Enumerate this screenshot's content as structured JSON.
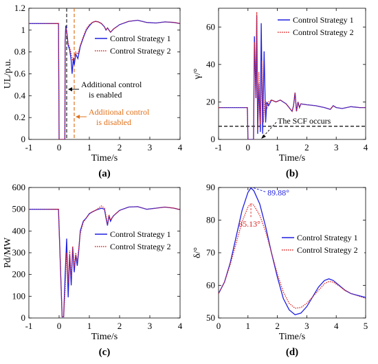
{
  "colors": {
    "strategy1": "#1f1fe0",
    "strategy2": "#e02020",
    "axis": "#000000",
    "enable_marker": "#222222",
    "disable_marker": "#e0701a",
    "scf_line": "#000000"
  },
  "chart_data": [
    {
      "panel": "(a)",
      "type": "line",
      "xlabel": "Time/s",
      "ylabel": "UL/p.u.",
      "xlim": [
        -1,
        4
      ],
      "ylim": [
        0,
        1.2
      ],
      "xticks": [
        -1,
        0,
        1,
        2,
        3,
        4
      ],
      "yticks": [
        0,
        0.2,
        0.4,
        0.6,
        0.8,
        1,
        1.2
      ],
      "legend": "inside-right",
      "series": [
        {
          "name": "Control Strategy 1",
          "style": "solid",
          "x": [
            -1,
            -0.02,
            0,
            0.19,
            0.2,
            0.22,
            0.26,
            0.3,
            0.35,
            0.4,
            0.43,
            0.47,
            0.5,
            0.55,
            0.62,
            0.7,
            0.8,
            0.9,
            1.0,
            1.1,
            1.2,
            1.3,
            1.4,
            1.5,
            1.55,
            1.6,
            1.7,
            1.8,
            2.0,
            2.3,
            2.6,
            2.9,
            3.2,
            3.5,
            3.8,
            4.0
          ],
          "y": [
            1.06,
            1.06,
            0,
            0,
            0.9,
            1.04,
            0.97,
            0.86,
            0.82,
            0.72,
            0.6,
            0.74,
            0.68,
            0.78,
            0.74,
            0.85,
            0.93,
            1.0,
            1.04,
            1.07,
            1.08,
            1.075,
            1.06,
            1.03,
            1.0,
            1.02,
            0.98,
            1.01,
            1.05,
            1.08,
            1.09,
            1.07,
            1.065,
            1.075,
            1.07,
            1.06
          ]
        },
        {
          "name": "Control Strategy 2",
          "style": "dotted",
          "x": [
            -1,
            -0.02,
            0,
            0.19,
            0.2,
            0.22,
            0.26,
            0.3,
            0.35,
            0.4,
            0.45,
            0.5,
            0.55,
            0.62,
            0.7,
            0.8,
            0.9,
            1.0,
            1.1,
            1.2,
            1.3,
            1.4,
            1.5,
            1.55,
            1.6,
            1.7,
            1.8,
            2.0,
            2.3,
            2.6,
            2.9,
            3.2,
            3.5,
            3.8,
            4.0
          ],
          "y": [
            1.06,
            1.06,
            0,
            0,
            0.88,
            1.02,
            0.96,
            0.88,
            0.84,
            0.78,
            0.72,
            0.76,
            0.8,
            0.78,
            0.86,
            0.94,
            1.01,
            1.05,
            1.07,
            1.08,
            1.075,
            1.06,
            1.03,
            1.0,
            1.02,
            0.98,
            1.01,
            1.05,
            1.08,
            1.09,
            1.07,
            1.065,
            1.075,
            1.07,
            1.06
          ]
        }
      ],
      "markers": [
        {
          "x": 0.25,
          "color_key": "enable_marker"
        },
        {
          "x": 0.5,
          "color_key": "disable_marker"
        }
      ],
      "annotations": [
        "Additional control",
        "is enabled",
        "Additional control",
        "is disabled"
      ]
    },
    {
      "panel": "(b)",
      "type": "line",
      "xlabel": "Time/s",
      "ylabel": "γ/°",
      "xlim": [
        -1,
        4
      ],
      "ylim": [
        0,
        70
      ],
      "xticks": [
        -1,
        0,
        1,
        2,
        3,
        4
      ],
      "yticks": [
        0,
        20,
        40,
        60
      ],
      "legend": "top-right",
      "series": [
        {
          "name": "Control Strategy 1",
          "style": "solid",
          "x": [
            -1,
            -0.02,
            0,
            0.19,
            0.22,
            0.27,
            0.3,
            0.33,
            0.37,
            0.42,
            0.45,
            0.5,
            0.55,
            0.6,
            0.64,
            0.7,
            0.8,
            0.95,
            1.1,
            1.3,
            1.5,
            1.55,
            1.6,
            1.65,
            1.7,
            1.75,
            1.8,
            2.0,
            2.3,
            2.6,
            2.8,
            2.9,
            3.0,
            3.2,
            3.5,
            3.8,
            4.0
          ],
          "y": [
            17,
            17,
            0,
            0,
            55,
            22,
            66,
            3,
            30,
            4,
            62,
            3,
            47,
            9,
            20,
            18,
            21,
            20,
            21,
            19,
            15,
            18,
            25,
            15,
            20,
            17,
            19,
            18.5,
            18,
            17,
            16,
            18,
            17,
            16.5,
            17.5,
            17,
            17
          ]
        },
        {
          "name": "Control Strategy 2",
          "style": "dotted",
          "x": [
            -1,
            -0.02,
            0,
            0.19,
            0.22,
            0.27,
            0.3,
            0.33,
            0.37,
            0.42,
            0.47,
            0.52,
            0.58,
            0.65,
            0.7,
            0.8,
            0.95,
            1.1,
            1.3,
            1.5,
            1.55,
            1.6,
            1.65,
            1.7,
            1.75,
            1.8,
            2.0,
            2.3,
            2.6,
            2.8,
            2.9,
            3.0,
            3.2,
            3.5,
            3.8,
            4.0
          ],
          "y": [
            17,
            17,
            0,
            0,
            52,
            22,
            68,
            5,
            36,
            8,
            42,
            9,
            21,
            17,
            20,
            21,
            20,
            21,
            19,
            15,
            18,
            25,
            15,
            20,
            17,
            19,
            18.5,
            18,
            17,
            16,
            18,
            17,
            16.5,
            17.5,
            17,
            17
          ]
        }
      ],
      "threshold": {
        "y": 7,
        "label": "The SCF occurs"
      }
    },
    {
      "panel": "(c)",
      "type": "line",
      "xlabel": "Time/s",
      "ylabel": "Pd/MW",
      "xlim": [
        -1,
        4
      ],
      "ylim": [
        0,
        600
      ],
      "xticks": [
        -1,
        0,
        1,
        2,
        3,
        4
      ],
      "yticks": [
        0,
        100,
        200,
        300,
        400,
        500,
        600
      ],
      "legend": "inside-right",
      "series": [
        {
          "name": "Control Strategy 1",
          "style": "solid",
          "x": [
            -1,
            -0.02,
            0.1,
            0.15,
            0.2,
            0.25,
            0.3,
            0.35,
            0.4,
            0.45,
            0.5,
            0.55,
            0.6,
            0.65,
            0.7,
            0.8,
            0.9,
            1.0,
            1.1,
            1.2,
            1.3,
            1.4,
            1.5,
            1.55,
            1.6,
            1.65,
            1.7,
            1.75,
            1.8,
            2.0,
            2.3,
            2.6,
            2.9,
            3.2,
            3.5,
            3.8,
            4.0
          ],
          "y": [
            500,
            500,
            5,
            5,
            200,
            365,
            95,
            290,
            150,
            325,
            210,
            290,
            240,
            310,
            400,
            445,
            460,
            480,
            488,
            495,
            500,
            505,
            500,
            460,
            425,
            470,
            445,
            460,
            470,
            495,
            510,
            512,
            500,
            505,
            510,
            505,
            498
          ]
        },
        {
          "name": "Control Strategy 2",
          "style": "dotted",
          "x": [
            -1,
            -0.02,
            0.1,
            0.15,
            0.2,
            0.25,
            0.3,
            0.35,
            0.4,
            0.45,
            0.5,
            0.55,
            0.6,
            0.65,
            0.7,
            0.8,
            0.9,
            1.0,
            1.1,
            1.2,
            1.3,
            1.4,
            1.5,
            1.55,
            1.6,
            1.65,
            1.7,
            1.75,
            1.8,
            2.0,
            2.3,
            2.6,
            2.9,
            3.2,
            3.5,
            3.8,
            4.0
          ],
          "y": [
            500,
            500,
            5,
            5,
            130,
            300,
            160,
            310,
            190,
            330,
            230,
            300,
            260,
            320,
            390,
            440,
            460,
            478,
            488,
            495,
            505,
            515,
            505,
            470,
            430,
            475,
            450,
            460,
            470,
            495,
            510,
            512,
            500,
            505,
            510,
            505,
            498
          ]
        }
      ]
    },
    {
      "panel": "(d)",
      "type": "line",
      "xlabel": "Time/s",
      "ylabel": "δ/°",
      "xlim": [
        0,
        5
      ],
      "ylim": [
        50,
        90
      ],
      "xticks": [
        0,
        1,
        2,
        3,
        4,
        5
      ],
      "yticks": [
        50,
        60,
        70,
        80,
        90
      ],
      "legend": "inside-right",
      "series": [
        {
          "name": "Control Strategy 1",
          "style": "solid",
          "x": [
            0,
            0.2,
            0.4,
            0.6,
            0.8,
            1.0,
            1.1,
            1.2,
            1.4,
            1.6,
            1.8,
            2.0,
            2.2,
            2.4,
            2.6,
            2.8,
            3.0,
            3.2,
            3.4,
            3.6,
            3.75,
            3.9,
            4.1,
            4.3,
            4.5,
            4.7,
            5.0
          ],
          "y": [
            57.5,
            61,
            67,
            75,
            83,
            88.5,
            89.88,
            89,
            85,
            78,
            70,
            62.5,
            56,
            52.5,
            51,
            51.5,
            53.5,
            56.5,
            59.5,
            61.5,
            62,
            61.5,
            60,
            58.5,
            57.5,
            57,
            56.3
          ]
        },
        {
          "name": "Control Strategy 2",
          "style": "dotted",
          "x": [
            0,
            0.2,
            0.4,
            0.6,
            0.8,
            1.0,
            1.1,
            1.2,
            1.4,
            1.6,
            1.8,
            2.0,
            2.2,
            2.4,
            2.6,
            2.8,
            3.0,
            3.2,
            3.4,
            3.6,
            3.75,
            3.9,
            4.1,
            4.3,
            4.5,
            4.7,
            5.0
          ],
          "y": [
            57.5,
            61,
            66.5,
            73,
            79.5,
            84,
            85.13,
            84.5,
            81.5,
            76.5,
            70,
            63.5,
            58,
            54.5,
            53,
            53.2,
            54.5,
            56.5,
            58.5,
            60.5,
            61.2,
            61,
            59.8,
            58.4,
            57.5,
            56.9,
            56
          ]
        }
      ],
      "peak_labels": [
        {
          "text": "89.88°",
          "x": 1.1,
          "y": 89.88,
          "series": 0
        },
        {
          "text": "85.13°",
          "x": 1.1,
          "y": 85.13,
          "series": 1
        }
      ]
    }
  ]
}
